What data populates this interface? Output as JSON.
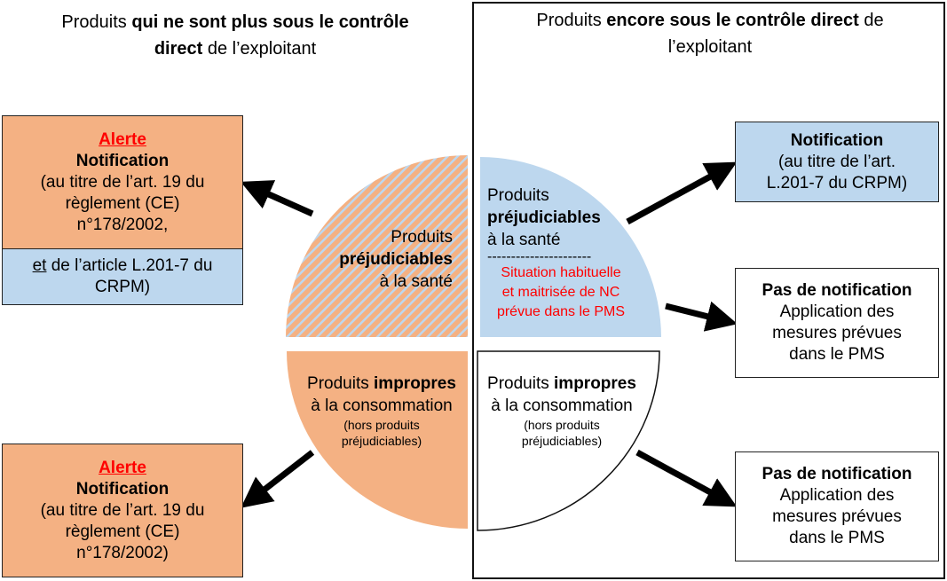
{
  "left_title": {
    "pre": "Produits ",
    "bold1": "qui ne sont plus sous le contrôle",
    "bold2": "direct",
    "post": " de l’exploitant"
  },
  "right_title": {
    "pre": "Produits ",
    "bold": "encore sous le contrôle direct",
    "post": " de",
    "line2": "l’exploitant"
  },
  "colors": {
    "orange": "#f4b183",
    "blue": "#bdd7ee",
    "red": "#ff0000"
  },
  "quadrants": {
    "top_left": {
      "line1": "Produits",
      "bold": "préjudiciables",
      "line3": "à la santé"
    },
    "top_right": {
      "line1": "Produits",
      "bold": "préjudiciables",
      "line3": "à la santé",
      "separator": "----------------------",
      "red_lines": [
        "Situation habituelle",
        "et maitrisée de NC",
        "prévue dans le PMS"
      ]
    },
    "bottom_left": {
      "pre": "Produits ",
      "bold": "impropres",
      "line2": "à la consommation",
      "small": [
        "(hors produits",
        "préjudiciables)"
      ]
    },
    "bottom_right": {
      "pre": "Produits ",
      "bold": "impropres",
      "line2": "à la consommation",
      "small": [
        "(hors produits",
        "préjudiciables)"
      ]
    }
  },
  "left_boxes": {
    "top": {
      "alert": "Alerte",
      "title": "Notification",
      "lines": [
        "(au titre de l’art. 19 du",
        "règlement (CE)",
        "n°178/2002,"
      ],
      "blue_underlined": "et",
      "blue_rest": " de l’article L.201-7 du",
      "blue_line2": "CRPM)"
    },
    "bottom": {
      "alert": "Alerte",
      "title": "Notification",
      "lines": [
        "(au titre de l’art. 19 du",
        "règlement (CE)",
        "n°178/2002)"
      ]
    }
  },
  "right_boxes": {
    "notification": {
      "title": "Notification",
      "lines": [
        "(au titre de l’art.",
        "L.201-7 du CRPM)"
      ]
    },
    "no_notification_1": {
      "title": "Pas de notification",
      "lines": [
        "Application des",
        "mesures prévues",
        "dans le PMS"
      ]
    },
    "no_notification_2": {
      "title": "Pas de notification",
      "lines": [
        "Application des",
        "mesures prévues",
        "dans le PMS"
      ]
    }
  }
}
